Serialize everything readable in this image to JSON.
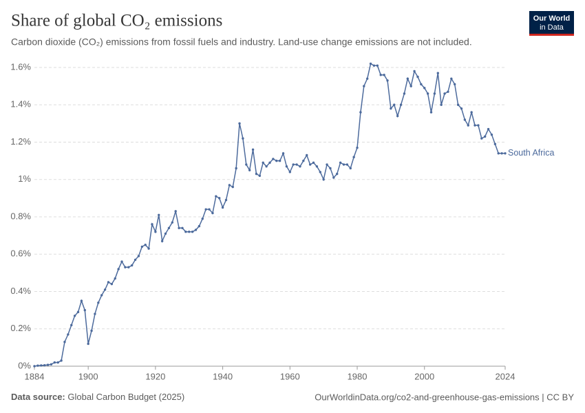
{
  "chart_data": {
    "type": "line",
    "title": "Share of global CO₂ emissions",
    "subtitle": "Carbon dioxide (CO₂) emissions from fossil fuels and industry. Land-use change emissions are not included.",
    "logo": [
      "Our World",
      "in Data"
    ],
    "source_label": "Data source:",
    "source": "Global Carbon Budget (2025)",
    "url": "OurWorldinData.org/co2-and-greenhouse-gas-emissions | CC BY",
    "x": [
      1884,
      1885,
      1886,
      1887,
      1888,
      1889,
      1890,
      1891,
      1892,
      1893,
      1894,
      1895,
      1896,
      1897,
      1898,
      1899,
      1900,
      1901,
      1902,
      1903,
      1904,
      1905,
      1906,
      1907,
      1908,
      1909,
      1910,
      1911,
      1912,
      1913,
      1914,
      1915,
      1916,
      1917,
      1918,
      1919,
      1920,
      1921,
      1922,
      1923,
      1924,
      1925,
      1926,
      1927,
      1928,
      1929,
      1930,
      1931,
      1932,
      1933,
      1934,
      1935,
      1936,
      1937,
      1938,
      1939,
      1940,
      1941,
      1942,
      1943,
      1944,
      1945,
      1946,
      1947,
      1948,
      1949,
      1950,
      1951,
      1952,
      1953,
      1954,
      1955,
      1956,
      1957,
      1958,
      1959,
      1960,
      1961,
      1962,
      1963,
      1964,
      1965,
      1966,
      1967,
      1968,
      1969,
      1970,
      1971,
      1972,
      1973,
      1974,
      1975,
      1976,
      1977,
      1978,
      1979,
      1980,
      1981,
      1982,
      1983,
      1984,
      1985,
      1986,
      1987,
      1988,
      1989,
      1990,
      1991,
      1992,
      1993,
      1994,
      1995,
      1996,
      1997,
      1998,
      1999,
      2000,
      2001,
      2002,
      2003,
      2004,
      2005,
      2006,
      2007,
      2008,
      2009,
      2010,
      2011,
      2012,
      2013,
      2014,
      2015,
      2016,
      2017,
      2018,
      2019,
      2020,
      2021,
      2022,
      2023,
      2024
    ],
    "series": [
      {
        "name": "South Africa",
        "color": "#4c6a9c",
        "values": [
          0,
          0.003,
          0.004,
          0.005,
          0.007,
          0.01,
          0.02,
          0.02,
          0.03,
          0.13,
          0.17,
          0.22,
          0.27,
          0.29,
          0.35,
          0.3,
          0.12,
          0.19,
          0.28,
          0.34,
          0.38,
          0.41,
          0.45,
          0.44,
          0.47,
          0.52,
          0.56,
          0.53,
          0.53,
          0.54,
          0.57,
          0.59,
          0.64,
          0.65,
          0.63,
          0.76,
          0.72,
          0.81,
          0.67,
          0.71,
          0.74,
          0.77,
          0.83,
          0.74,
          0.74,
          0.72,
          0.72,
          0.72,
          0.73,
          0.75,
          0.79,
          0.84,
          0.84,
          0.82,
          0.91,
          0.9,
          0.85,
          0.89,
          0.97,
          0.96,
          1.06,
          1.3,
          1.22,
          1.08,
          1.05,
          1.16,
          1.03,
          1.02,
          1.09,
          1.07,
          1.09,
          1.11,
          1.1,
          1.1,
          1.14,
          1.07,
          1.04,
          1.08,
          1.08,
          1.07,
          1.1,
          1.13,
          1.08,
          1.09,
          1.07,
          1.04,
          1.0,
          1.08,
          1.06,
          1.01,
          1.03,
          1.09,
          1.08,
          1.08,
          1.06,
          1.12,
          1.17,
          1.36,
          1.5,
          1.54,
          1.62,
          1.61,
          1.61,
          1.56,
          1.56,
          1.53,
          1.38,
          1.4,
          1.34,
          1.4,
          1.46,
          1.54,
          1.5,
          1.58,
          1.55,
          1.51,
          1.49,
          1.46,
          1.36,
          1.46,
          1.57,
          1.4,
          1.46,
          1.47,
          1.54,
          1.51,
          1.4,
          1.38,
          1.32,
          1.29,
          1.36,
          1.29,
          1.29,
          1.22,
          1.23,
          1.27,
          1.24,
          1.19,
          1.14,
          1.14,
          1.14
        ]
      }
    ],
    "xlim": [
      1884,
      2024
    ],
    "xticks": [
      1884,
      1900,
      1920,
      1940,
      1960,
      1980,
      2000,
      2024
    ],
    "ylim": [
      0,
      1.6
    ],
    "yticks": [
      {
        "value": 0,
        "label": "0%"
      },
      {
        "value": 0.2,
        "label": "0.2%"
      },
      {
        "value": 0.4,
        "label": "0.4%"
      },
      {
        "value": 0.6,
        "label": "0.6%"
      },
      {
        "value": 0.8,
        "label": "0.8%"
      },
      {
        "value": 1,
        "label": "1%"
      },
      {
        "value": 1.2,
        "label": "1.2%"
      },
      {
        "value": 1.4,
        "label": "1.4%"
      },
      {
        "value": 1.6,
        "label": "1.6%"
      }
    ],
    "grid": true
  }
}
